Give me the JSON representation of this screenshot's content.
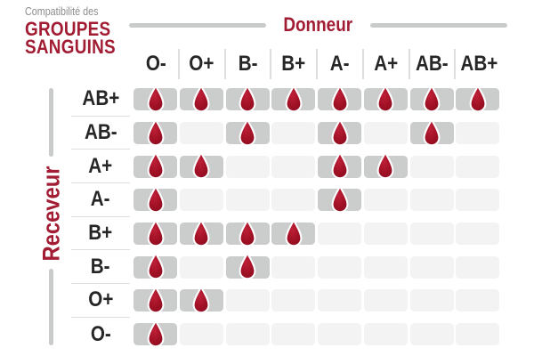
{
  "title": {
    "eyebrow": "Compatibilité des",
    "heading_line1": "GROUPES",
    "heading_line2": "SANGUINS"
  },
  "donor_axis_label": "Donneur",
  "receiver_axis_label": "Receveur",
  "icons": {
    "compatible_marker": "blood-drop-icon"
  },
  "colors": {
    "accent_red": "#A21D33",
    "drop_red": "#A31226",
    "cell_filled_gray": "#CBCDCC",
    "cell_empty_gray": "#F2F3F2",
    "label_dark": "#262626",
    "eyebrow_gray": "#8C8C8C",
    "decor_line_gray": "#C9CBCA",
    "separator_gray": "#DDDFDE",
    "background": "#FFFFFF"
  },
  "chart_data": {
    "type": "heatmap",
    "title": "Compatibilité des groupes sanguins",
    "x_axis_label": "Donneur",
    "y_axis_label": "Receveur",
    "columns": [
      "O-",
      "O+",
      "B-",
      "B+",
      "A-",
      "A+",
      "AB-",
      "AB+"
    ],
    "rows": [
      "AB+",
      "AB-",
      "A+",
      "A-",
      "B+",
      "B-",
      "O+",
      "O-"
    ],
    "matrix": [
      [
        1,
        1,
        1,
        1,
        1,
        1,
        1,
        1
      ],
      [
        1,
        0,
        1,
        0,
        1,
        0,
        1,
        0
      ],
      [
        1,
        1,
        0,
        0,
        1,
        1,
        0,
        0
      ],
      [
        1,
        0,
        0,
        0,
        1,
        0,
        0,
        0
      ],
      [
        1,
        1,
        1,
        1,
        0,
        0,
        0,
        0
      ],
      [
        1,
        0,
        1,
        0,
        0,
        0,
        0,
        0
      ],
      [
        1,
        1,
        0,
        0,
        0,
        0,
        0,
        0
      ],
      [
        1,
        0,
        0,
        0,
        0,
        0,
        0,
        0
      ]
    ],
    "cell_value_meaning": {
      "1": "compatible — blood drop shown on gray cell",
      "0": "not compatible — empty light gray cell"
    },
    "legend_position": "none",
    "grid": false
  }
}
